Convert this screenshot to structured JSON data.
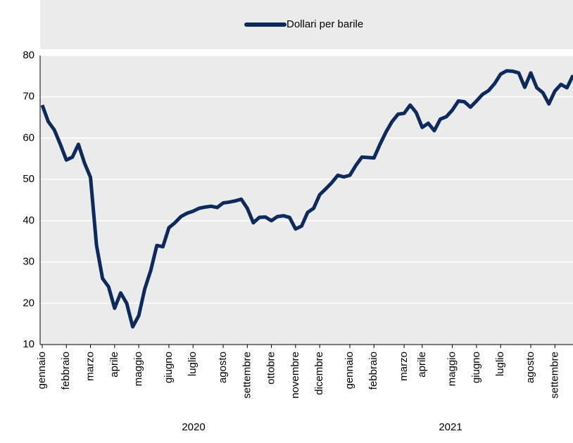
{
  "chart_data": {
    "type": "line",
    "categories": [
      "gennaio",
      null,
      null,
      null,
      "febbraio",
      null,
      null,
      null,
      "marzo",
      null,
      null,
      null,
      "aprile",
      null,
      null,
      null,
      "maggio",
      null,
      null,
      null,
      null,
      "giugno",
      null,
      null,
      null,
      "luglio",
      null,
      null,
      null,
      null,
      "agosto",
      null,
      null,
      null,
      "settembre",
      null,
      null,
      null,
      "ottobre",
      null,
      null,
      null,
      "novembre",
      null,
      null,
      null,
      "dicembre",
      null,
      null,
      null,
      null,
      "gennaio",
      null,
      null,
      null,
      "febbraio",
      null,
      null,
      null,
      null,
      "marzo",
      null,
      null,
      "aprile",
      null,
      null,
      null,
      null,
      "maggio",
      null,
      null,
      null,
      "giugno",
      null,
      null,
      null,
      "luglio",
      null,
      null,
      null,
      null,
      "agosto",
      null,
      null,
      null,
      "settembre",
      null,
      null,
      null
    ],
    "years": [
      "2020",
      "2021"
    ],
    "series": [
      {
        "name": "Dollari per barile",
        "color": "#0d2a5c",
        "values": [
          68,
          64,
          62,
          58.5,
          54.7,
          55.4,
          58.5,
          54,
          50.5,
          34,
          26,
          24,
          18.8,
          22.5,
          20,
          14.3,
          17,
          23.5,
          28,
          34,
          33.7,
          38.3,
          39.5,
          41,
          41.8,
          42.3,
          43,
          43.3,
          43.5,
          43.2,
          44.3,
          44.5,
          44.8,
          45.2,
          43,
          39.5,
          40.8,
          40.9,
          40,
          41,
          41.2,
          40.8,
          38,
          38.7,
          42,
          43,
          46.3,
          47.7,
          49.2,
          51,
          50.6,
          51,
          53.4,
          55.4,
          55.3,
          55.2,
          58.5,
          61.5,
          64,
          65.8,
          66,
          68,
          66.2,
          62.6,
          63.6,
          61.8,
          64.6,
          65.2,
          66.8,
          69,
          68.8,
          67.5,
          69,
          70.6,
          71.5,
          73.2,
          75.5,
          76.3,
          76.2,
          75.8,
          72.3,
          75.8,
          72.2,
          71,
          68.3,
          71.4,
          73,
          72.2,
          75.2
        ]
      }
    ],
    "ylim": [
      10,
      80
    ],
    "yticks": [
      10,
      20,
      30,
      40,
      50,
      60,
      70,
      80
    ],
    "grid": true,
    "legend": "top"
  }
}
